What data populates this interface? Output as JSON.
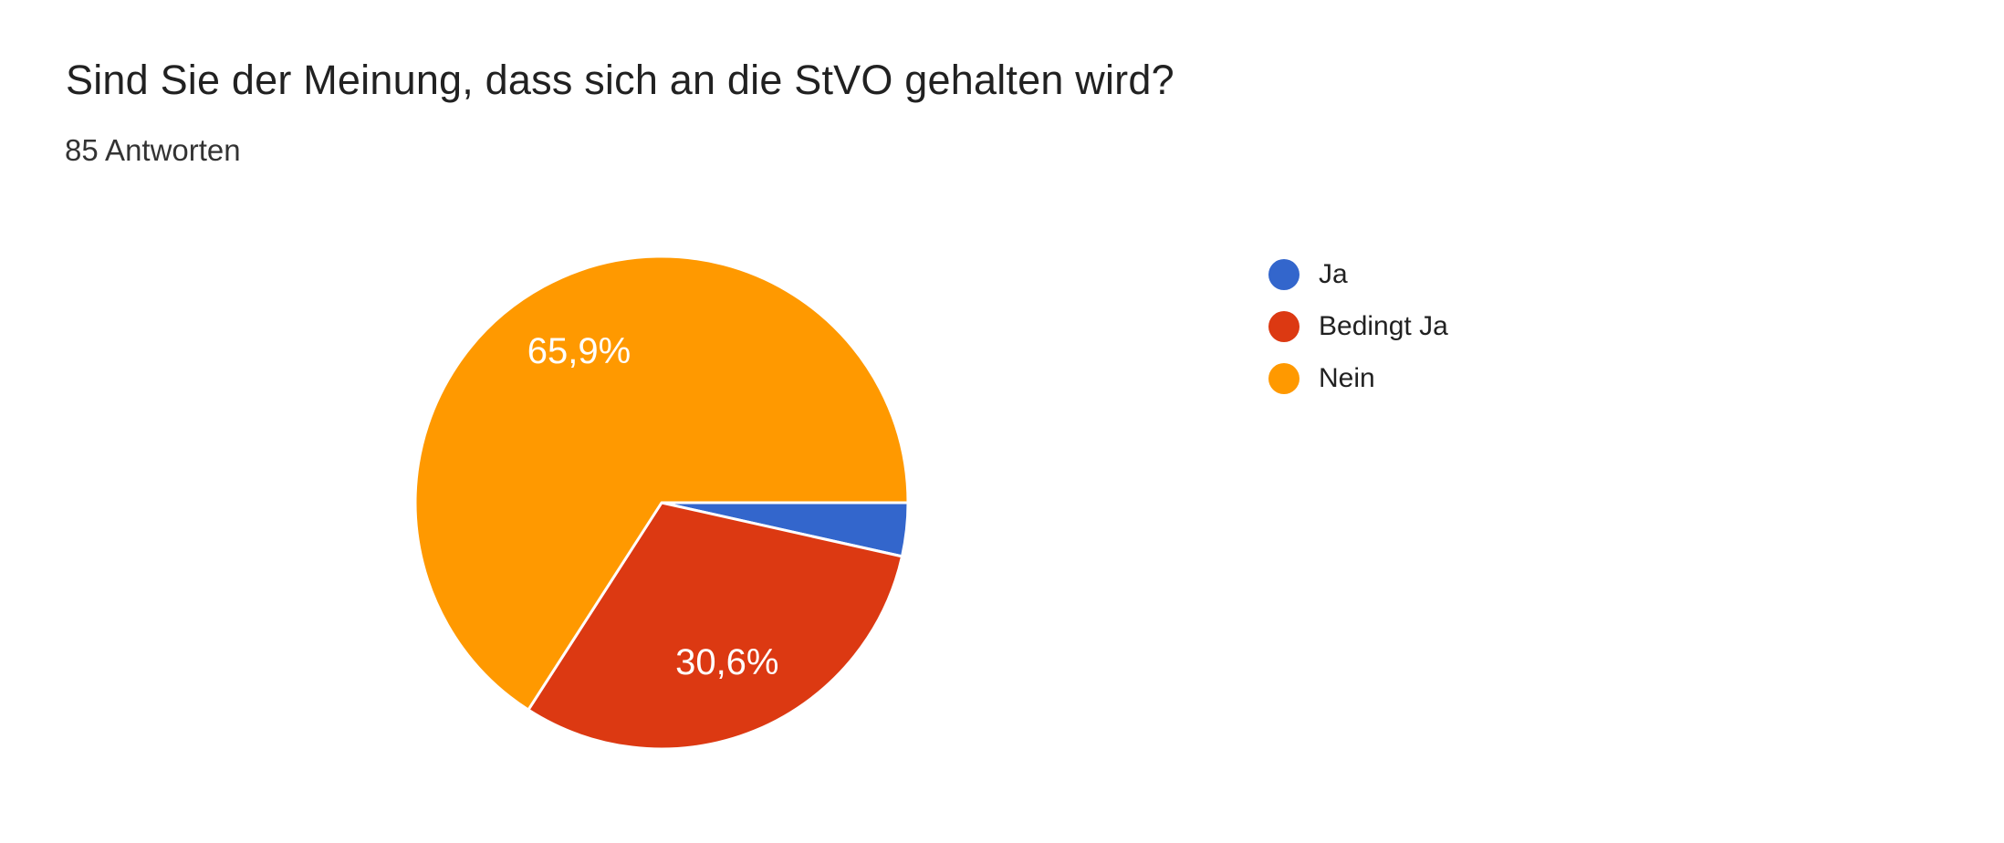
{
  "header": {
    "title": "Sind Sie der Meinung, dass sich an die StVO gehalten wird?",
    "subtitle": "85 Antworten"
  },
  "chart_data": {
    "type": "pie",
    "title": "Sind Sie der Meinung, dass sich an die StVO gehalten wird?",
    "subtitle": "85 Antworten",
    "responses_count": 85,
    "legend_position": "right",
    "start_angle": "east-clockwise",
    "slice_border_color": "#ffffff",
    "label_text_color": "#ffffff",
    "slices": [
      {
        "label": "Ja",
        "percent": 3.5,
        "display_label": "",
        "color": "#3366CC"
      },
      {
        "label": "Bedingt Ja",
        "percent": 30.6,
        "display_label": "30,6%",
        "color": "#DC3912"
      },
      {
        "label": "Nein",
        "percent": 65.9,
        "display_label": "65,9%",
        "color": "#FF9900"
      }
    ]
  }
}
